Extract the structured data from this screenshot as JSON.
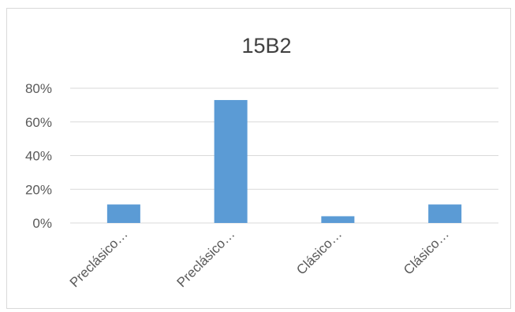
{
  "chart_data": {
    "type": "bar",
    "title": "15B2",
    "categories": [
      "Preclásico…",
      "Preclásico…",
      "Clásico…",
      "Clásico…"
    ],
    "values": [
      0.11,
      0.73,
      0.04,
      0.11
    ],
    "ylim": [
      0,
      0.8
    ],
    "yticks": [
      0,
      0.2,
      0.4,
      0.6,
      0.8
    ],
    "ytick_labels": [
      "0%",
      "20%",
      "40%",
      "60%",
      "80%"
    ],
    "grid": true,
    "bar_color": "#5b9bd5",
    "gridline_color": "#d9d9d9"
  }
}
